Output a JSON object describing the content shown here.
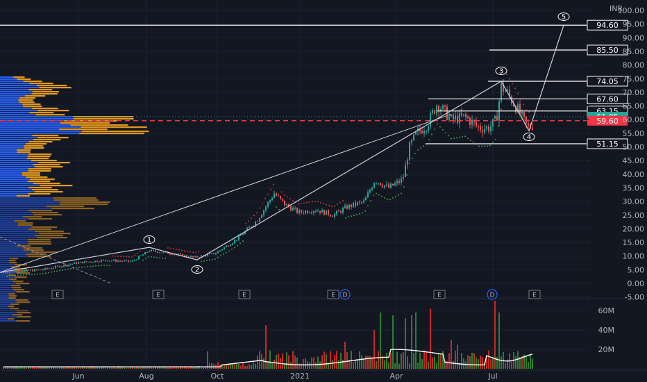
{
  "currency": "INR",
  "colors": {
    "background": "#131722",
    "up": "#26a69a",
    "down": "#ef5350",
    "volume_up": "#2e7d32",
    "volume_down": "#c62828",
    "support_dots": "#4caf50",
    "resist_dots": "#e53935",
    "profile_blue": "#2962ff",
    "profile_orange": "#f0a020",
    "current_price": "#26a69a",
    "poc_price": "#f23645"
  },
  "chart_data": {
    "type": "candlestick",
    "y_axis": {
      "range": [
        -5,
        100
      ],
      "ticks": [
        "100.00",
        "95.00",
        "90.00",
        "85.00",
        "80.00",
        "75.00",
        "70.00",
        "65.00",
        "60.00",
        "55.00",
        "50.00",
        "45.00",
        "40.00",
        "35.00",
        "30.00",
        "25.00",
        "20.00",
        "15.00",
        "10.00",
        "5.00",
        "0.00",
        "-5.00"
      ]
    },
    "time_axis": [
      "Jun",
      "Aug",
      "Oct",
      "2021",
      "Apr",
      "Jul"
    ],
    "price_levels": [
      {
        "label": "94.60",
        "value": 94.6
      },
      {
        "label": "85.50",
        "value": 85.5
      },
      {
        "label": "74.05",
        "value": 74.05
      },
      {
        "label": "67.60",
        "value": 67.6
      },
      {
        "label": "63.15",
        "value": 63.15
      },
      {
        "label": "51.15",
        "value": 51.15
      }
    ],
    "current_price": {
      "label": "61.05",
      "value": 61.05
    },
    "poc_price": {
      "label": "59.60",
      "value": 59.6
    },
    "elliott_waves": [
      {
        "label": "1",
        "value": 13.2
      },
      {
        "label": "2",
        "value": 8.6
      },
      {
        "label": "3",
        "value": 74.05
      },
      {
        "label": "4",
        "value": 55.9
      },
      {
        "label": "5",
        "value": 94.6
      }
    ],
    "events": [
      "E",
      "E",
      "E",
      "E",
      "D",
      "E",
      "D",
      "E"
    ],
    "volume_axis": {
      "ticks": [
        "60M",
        "40M",
        "20M"
      ],
      "range": [
        0,
        70
      ]
    }
  }
}
